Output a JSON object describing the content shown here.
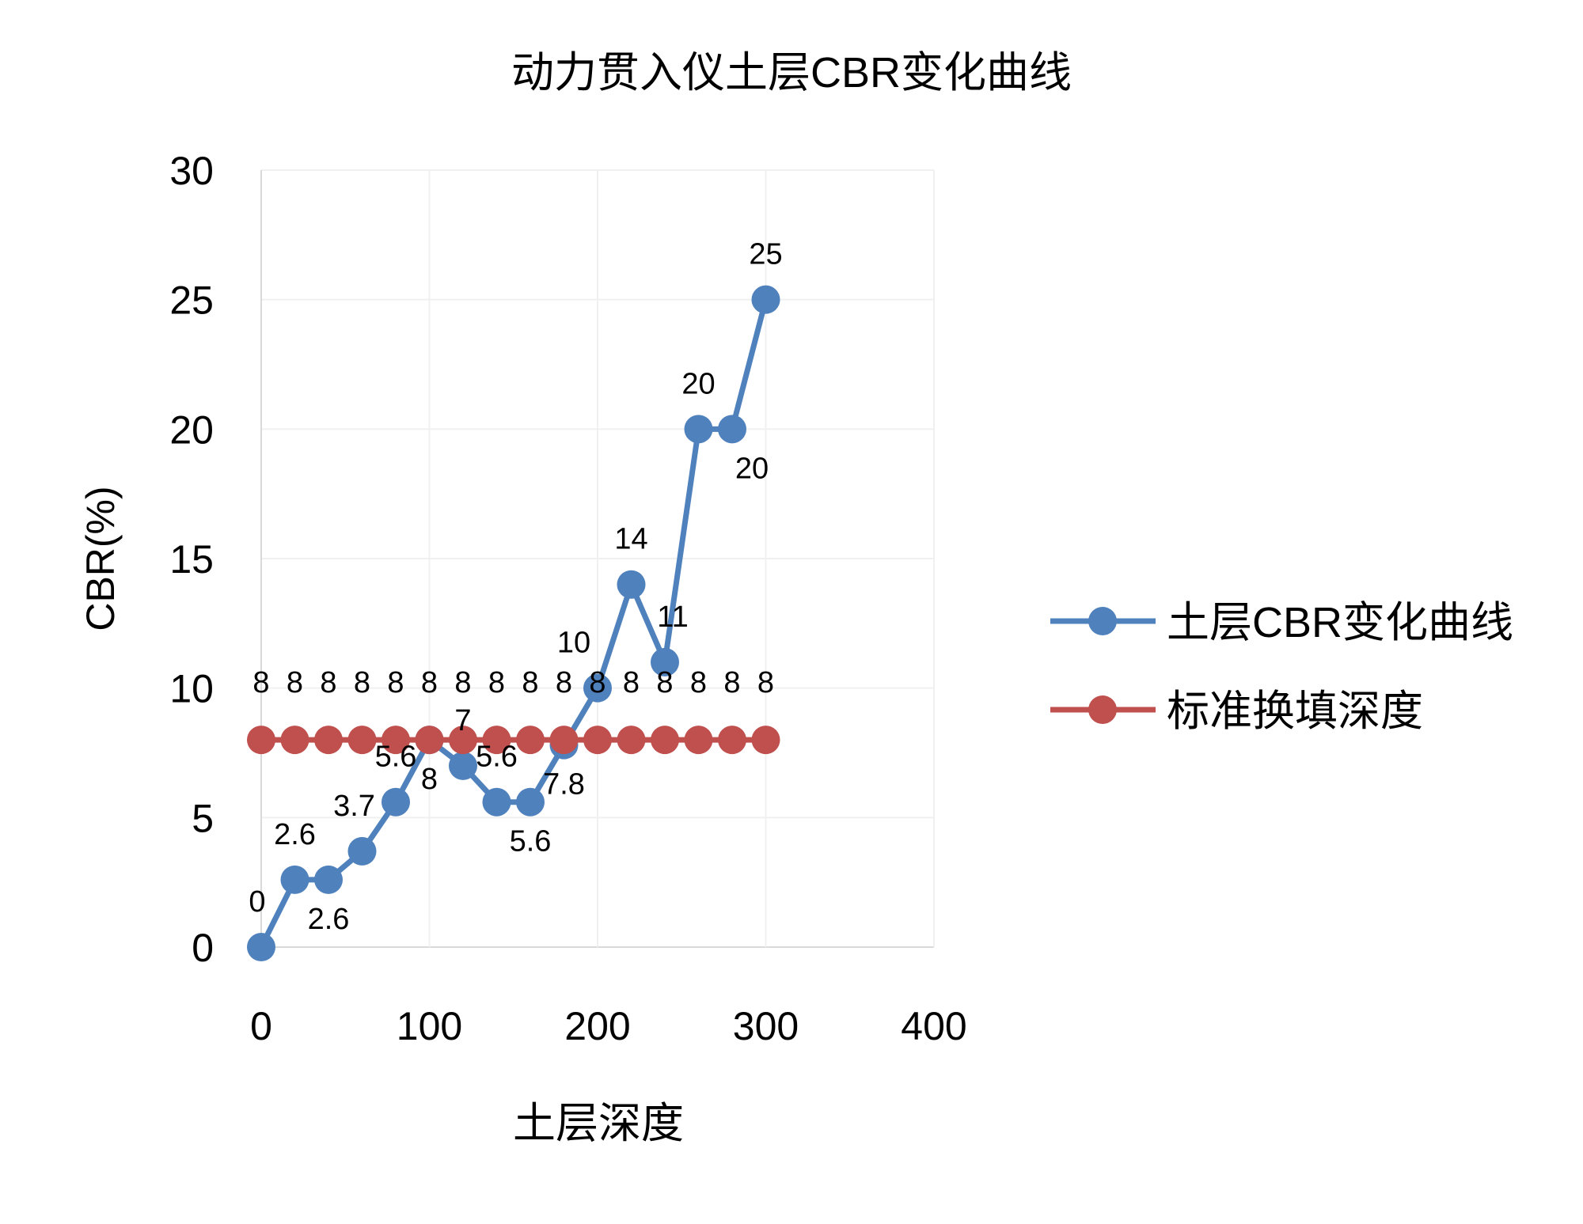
{
  "chart_data": {
    "type": "line",
    "title": "动力贯入仪土层CBR变化曲线",
    "xlabel": "土层深度",
    "ylabel": "CBR(%)",
    "xlim": [
      0,
      400
    ],
    "ylim": [
      0,
      30
    ],
    "xticks": [
      0,
      100,
      200,
      300,
      400
    ],
    "yticks": [
      0,
      5,
      10,
      15,
      20,
      25,
      30
    ],
    "grid": true,
    "legend_position": "right",
    "x": [
      0,
      20,
      40,
      60,
      80,
      100,
      120,
      140,
      160,
      180,
      200,
      220,
      240,
      260,
      280,
      300
    ],
    "series": [
      {
        "name": "土层CBR变化曲线",
        "color": "#4f81bd",
        "values": [
          0,
          2.6,
          2.6,
          3.7,
          5.6,
          8,
          7,
          5.6,
          5.6,
          7.8,
          10,
          14,
          11,
          20,
          20,
          25
        ]
      },
      {
        "name": "标准换填深度",
        "color": "#c0504d",
        "values": [
          8,
          8,
          8,
          8,
          8,
          8,
          8,
          8,
          8,
          8,
          8,
          8,
          8,
          8,
          8,
          8
        ]
      }
    ]
  }
}
